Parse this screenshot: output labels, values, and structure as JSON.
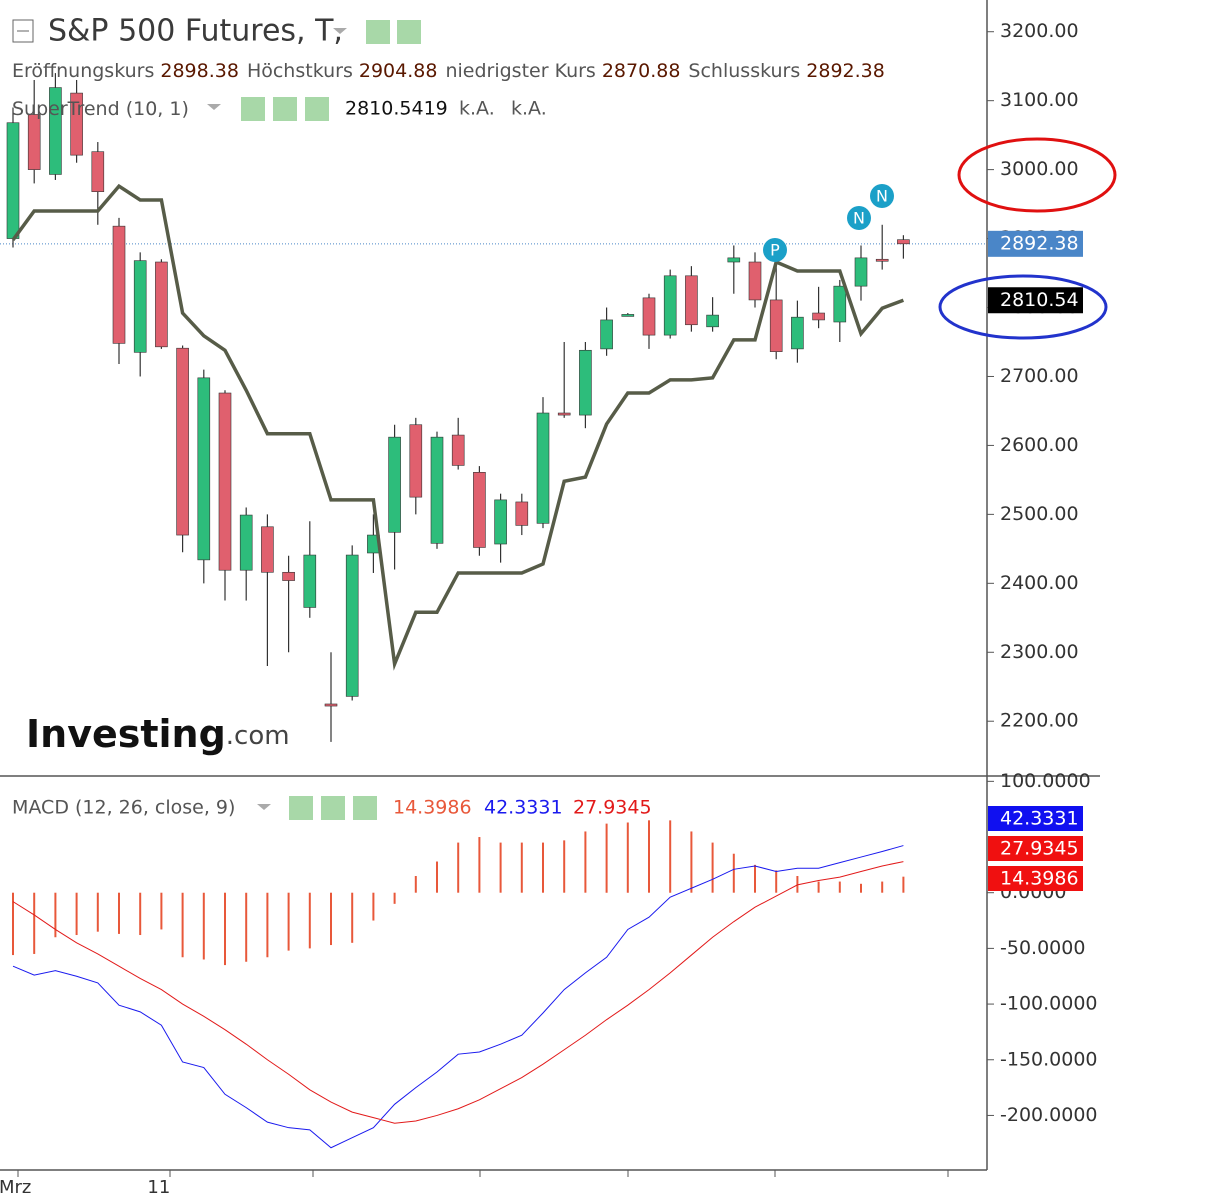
{
  "chart_data": [
    {
      "type": "candlestick",
      "title": "S&P 500 Futures, T,",
      "info": [
        {
          "label": "Eröffnungskurs",
          "value": 2898.38
        },
        {
          "label": "Höchstkurs",
          "value": 2904.88
        },
        {
          "label": "niedrigster Kurs",
          "value": 2870.88
        },
        {
          "label": "Schlusskurs",
          "value": 2892.38
        }
      ],
      "indicator": {
        "name": "SuperTrend (10, 1)",
        "value": 2810.5419,
        "extra": [
          "k.A.",
          "k.A."
        ]
      },
      "categories": [
        "Mrz",
        null,
        null,
        null,
        null,
        null,
        null,
        "11",
        null,
        null,
        null,
        null,
        null,
        null,
        null,
        null,
        null,
        null,
        null,
        null,
        null,
        null,
        null,
        null,
        null,
        null,
        null,
        null,
        null,
        null,
        null,
        null,
        null,
        null,
        null,
        null,
        null,
        null,
        null,
        null,
        null,
        null,
        null
      ],
      "open": [
        2900,
        3080,
        2993,
        3111,
        3026,
        2918,
        2735,
        2866,
        2741,
        2434,
        2676,
        2419,
        2482,
        2416,
        2365,
        2225,
        2236,
        2444,
        2474,
        2630,
        2458,
        2615,
        2561,
        2457,
        2518,
        2487,
        2647,
        2644,
        2740,
        2789,
        2814,
        2760,
        2846,
        2772,
        2866,
        2866,
        2811,
        2740,
        2792,
        2779,
        2831,
        2870,
        2898.38
      ],
      "high": [
        3090,
        3130,
        3140,
        3130,
        3040,
        2930,
        2880,
        2870,
        2745,
        2710,
        2680,
        2510,
        2500,
        2440,
        2490,
        2300,
        2455,
        2500,
        2630,
        2640,
        2620,
        2640,
        2570,
        2530,
        2530,
        2670,
        2750,
        2750,
        2800,
        2792,
        2820,
        2855,
        2860,
        2815,
        2890,
        2880,
        2870,
        2810,
        2830,
        2840,
        2890,
        2920,
        2904.88
      ],
      "low": [
        2887,
        2980,
        2985,
        3010,
        2920,
        2718,
        2700,
        2740,
        2445,
        2400,
        2375,
        2375,
        2280,
        2300,
        2350,
        2170,
        2230,
        2415,
        2420,
        2500,
        2450,
        2565,
        2440,
        2430,
        2470,
        2480,
        2640,
        2625,
        2730,
        2787,
        2740,
        2755,
        2765,
        2765,
        2820,
        2800,
        2725,
        2720,
        2770,
        2750,
        2810,
        2855,
        2870.88
      ],
      "close": [
        3068,
        3000,
        3119,
        3021,
        2968,
        2748,
        2868,
        2743,
        2470,
        2698,
        2419,
        2499,
        2416,
        2404,
        2441,
        2222,
        2441,
        2470,
        2612,
        2525,
        2612,
        2571,
        2452,
        2521,
        2484,
        2647,
        2644,
        2738,
        2782,
        2790,
        2760,
        2846,
        2775,
        2789,
        2872,
        2811,
        2736,
        2786,
        2782,
        2831,
        2872,
        2868,
        2892.38
      ],
      "up_color": "#2dbd7b",
      "down_color": "#e0606e",
      "series": [
        {
          "color": "#575c48",
          "values": [
            2898,
            2940,
            2940,
            2940,
            2940,
            2976,
            2956,
            2956,
            2792,
            2759,
            2738,
            2680,
            2617,
            2617,
            2617,
            2521,
            2521,
            2521,
            2283,
            2358,
            2358,
            2415,
            2415,
            2415,
            2415,
            2428,
            2548,
            2554,
            2631,
            2676,
            2676,
            2695,
            2695,
            2698,
            2753,
            2753,
            2866,
            2853,
            2853,
            2853,
            2762,
            2799,
            2810.54
          ]
        }
      ],
      "last_price": {
        "value": 2892.38,
        "label": "2892.38"
      },
      "indicator_label": {
        "value": 2810.54,
        "label": "2810.54"
      },
      "markers": [
        "P",
        "N",
        "N"
      ],
      "logo": [
        "Investing",
        ".com"
      ],
      "ylim": [
        2122,
        3246
      ],
      "yticks": [
        {
          "value": 3200,
          "label": "3200.00"
        },
        {
          "value": 3100,
          "label": "3100.00"
        },
        {
          "value": 3000,
          "label": "3000.00"
        },
        {
          "value": 2900,
          "label": "2900.00"
        },
        {
          "value": 2800,
          "label": "2800.00"
        },
        {
          "value": 2700,
          "label": "2700.00"
        },
        {
          "value": 2600,
          "label": "2600.00"
        },
        {
          "value": 2500,
          "label": "2500.00"
        },
        {
          "value": 2400,
          "label": "2400.00"
        },
        {
          "value": 2300,
          "label": "2300.00"
        },
        {
          "value": 2200,
          "label": "2200.00"
        }
      ]
    },
    {
      "type": "macd",
      "title": "MACD (12, 26, close, 9)",
      "series": [
        {
          "color": "#e8583a",
          "values": [
            -56,
            -55,
            -40,
            -38,
            -35,
            -37,
            -38,
            -33,
            -58,
            -60,
            -65,
            -62,
            -58,
            -52,
            -50,
            -47,
            -45,
            -25,
            -10,
            15,
            28,
            45,
            50,
            45,
            45,
            45,
            47,
            55,
            62,
            63,
            65,
            65,
            55,
            45,
            35,
            25,
            20,
            15,
            10,
            10,
            8,
            10,
            14.3986
          ]
        },
        {
          "color": "#1a1aee",
          "values": [
            -66,
            -74,
            -70,
            -75,
            -81,
            -101,
            -107,
            -119,
            -152,
            -157,
            -181,
            -193,
            -206,
            -211,
            -213,
            -229,
            -220,
            -211,
            -190,
            -175,
            -161,
            -145,
            -143,
            -136,
            -128,
            -108,
            -87,
            -72,
            -58,
            -33,
            -22,
            -4,
            4,
            12,
            21,
            24,
            19,
            22,
            22,
            27,
            32,
            37,
            42.3331
          ]
        },
        {
          "color": "#e21a1a",
          "values": [
            -8,
            -20,
            -33,
            -45,
            -55,
            -66,
            -77,
            -87,
            -100,
            -111,
            -123,
            -136,
            -150,
            -163,
            -177,
            -188,
            -197,
            -202,
            -207,
            -205,
            -200,
            -194,
            -186,
            -176,
            -166,
            -154,
            -141,
            -128,
            -114,
            -101,
            -87,
            -72,
            -56,
            -40,
            -26,
            -13,
            -3,
            7,
            11,
            14,
            19,
            24,
            27.9345
          ]
        }
      ],
      "ylim": [
        -249,
        103
      ],
      "yticks": [
        {
          "value": 100,
          "label": "100.0000"
        },
        {
          "value": 0,
          "label": "0.0000"
        },
        {
          "value": -50,
          "label": "-50.0000"
        },
        {
          "value": -100,
          "label": "-100.0000"
        },
        {
          "value": -150,
          "label": "-150.0000"
        },
        {
          "value": -200,
          "label": "-200.0000"
        }
      ]
    }
  ]
}
